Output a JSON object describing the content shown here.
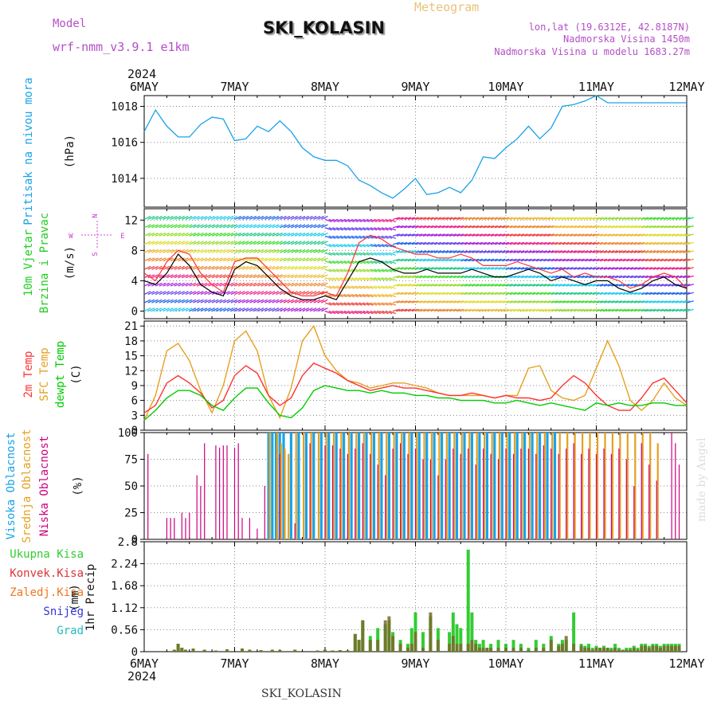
{
  "header": {
    "model_label": "Model",
    "model_name": "wrf-nmm_v3.9.1 e1km",
    "meteogram_label": "Meteogram",
    "station": "SKI_KOLASIN",
    "lonlat": "lon,lat (19.6312E, 42.8187N)",
    "altitude": "Nadmorska Visina 1450m",
    "model_altitude": "Nadmorska Visina u modelu 1683.27m",
    "footer_station": "SKI_KOLASIN",
    "credit": "made by Angel"
  },
  "colors": {
    "pressure": "#1aa3e8",
    "wind_label": "#22cc22",
    "temp2m": "#ff3333",
    "sfc_temp": "#e6a020",
    "dewpoint": "#00cc00",
    "high_cloud": "#1aa3e8",
    "mid_cloud": "#e6a020",
    "low_cloud": "#cc0080",
    "total_precip": "#33cc33",
    "conv_precip": "#dd3333",
    "frozen_precip": "#ee7722",
    "snow": "#3333dd",
    "graupel": "#22bbbb",
    "compass": "#cc44cc"
  },
  "chart_data": [
    {
      "type": "line",
      "name": "pressure",
      "ylabel_lines": [
        "Pritisak na nivou mora"
      ],
      "unit": "(hPa)",
      "ylim": [
        1012.4,
        1018.6
      ],
      "yticks": [
        1014,
        1016,
        1018
      ],
      "x": [
        0,
        3,
        6,
        9,
        12,
        15,
        18,
        21,
        24,
        27,
        30,
        33,
        36,
        39,
        42,
        45,
        48,
        51,
        54,
        57,
        60,
        63,
        66,
        69,
        72,
        75,
        78,
        81,
        84,
        87,
        90,
        93,
        96,
        99,
        102,
        105,
        108,
        111,
        114,
        117,
        120,
        123,
        126,
        129,
        132,
        135,
        138,
        141,
        144
      ],
      "values": [
        1016.6,
        1017.8,
        1016.9,
        1016.3,
        1016.3,
        1017.0,
        1017.4,
        1017.3,
        1016.1,
        1016.2,
        1016.9,
        1016.6,
        1017.2,
        1016.6,
        1015.7,
        1015.2,
        1015.0,
        1015.0,
        1014.7,
        1013.9,
        1013.6,
        1013.2,
        1012.9,
        1013.4,
        1014.0,
        1013.1,
        1013.2,
        1013.5,
        1013.2,
        1013.9,
        1015.2,
        1015.1,
        1015.7,
        1016.2,
        1016.9,
        1016.2,
        1016.8,
        1018.0,
        1018.1,
        1018.3,
        1018.6,
        1018.2,
        1018.2,
        1018.2,
        1018.2,
        1018.2,
        1018.2,
        1018.2,
        1018.2
      ],
      "y_positions": "data"
    },
    {
      "type": "line",
      "name": "wind",
      "ylabel_lines": [
        "10m Vjetar",
        "Brzina i Pravac"
      ],
      "unit": "(m/s)",
      "ylim": [
        -1,
        13.5
      ],
      "yticks": [
        0,
        4,
        8,
        12
      ],
      "compass": {
        "n": "N",
        "s": "S",
        "w": "W",
        "e": "E"
      },
      "x": [
        0,
        3,
        6,
        9,
        12,
        15,
        18,
        21,
        24,
        27,
        30,
        33,
        36,
        39,
        42,
        45,
        48,
        51,
        54,
        57,
        60,
        63,
        66,
        69,
        72,
        75,
        78,
        81,
        84,
        87,
        90,
        93,
        96,
        99,
        102,
        105,
        108,
        111,
        114,
        117,
        120,
        123,
        126,
        129,
        132,
        135,
        138,
        141,
        144
      ],
      "speed": [
        4.0,
        3.5,
        5.0,
        7.5,
        6.0,
        3.5,
        2.5,
        2.0,
        5.5,
        6.5,
        6.0,
        4.5,
        3.0,
        2.0,
        1.5,
        1.5,
        2.0,
        1.5,
        4.0,
        6.5,
        7.0,
        6.5,
        5.5,
        5.0,
        5.0,
        5.5,
        5.0,
        5.0,
        5.0,
        5.5,
        5.0,
        4.5,
        4.5,
        5.0,
        5.5,
        5.0,
        4.0,
        4.5,
        4.0,
        3.5,
        4.0,
        4.0,
        3.0,
        2.5,
        3.0,
        4.0,
        4.5,
        3.5,
        3.0
      ],
      "gust": [
        5.0,
        4.0,
        6.5,
        8.0,
        7.5,
        5.0,
        3.5,
        2.5,
        6.5,
        7.0,
        7.0,
        5.5,
        4.0,
        2.5,
        2.0,
        2.0,
        2.5,
        2.0,
        5.0,
        9.0,
        10.0,
        9.5,
        8.5,
        8.0,
        7.5,
        7.5,
        7.0,
        7.0,
        7.5,
        7.0,
        6.0,
        6.0,
        6.0,
        6.5,
        6.0,
        5.5,
        5.0,
        5.5,
        4.5,
        5.0,
        4.5,
        4.5,
        4.0,
        3.0,
        3.5,
        4.5,
        5.0,
        4.5,
        3.0
      ],
      "band_colors": [
        "#22ccee",
        "#2266ee",
        "#6644ee",
        "#aa22dd",
        "#ee2288",
        "#ee4444",
        "#ee8833",
        "#eebb33",
        "#dddd33",
        "#99dd33",
        "#44dd33",
        "#22cc88"
      ]
    },
    {
      "type": "line",
      "name": "temperature",
      "ylabel_lines": [
        "2m Temp",
        "SFC Temp",
        "dewpt Temp"
      ],
      "unit": "(C)",
      "ylim": [
        0,
        22
      ],
      "yticks": [
        0,
        3,
        6,
        9,
        12,
        15,
        18,
        21
      ],
      "x": [
        0,
        3,
        6,
        9,
        12,
        15,
        18,
        21,
        24,
        27,
        30,
        33,
        36,
        39,
        42,
        45,
        48,
        51,
        54,
        57,
        60,
        63,
        66,
        69,
        72,
        75,
        78,
        81,
        84,
        87,
        90,
        93,
        96,
        99,
        102,
        105,
        108,
        111,
        114,
        117,
        120,
        123,
        126,
        129,
        132,
        135,
        138,
        141,
        144
      ],
      "series": [
        {
          "key": "t2m",
          "values": [
            3.5,
            5.0,
            9.5,
            11.0,
            9.5,
            7.5,
            4.5,
            6.0,
            11.0,
            13.0,
            11.5,
            7.0,
            5.0,
            6.5,
            11.0,
            13.5,
            12.5,
            11.5,
            10.0,
            9.0,
            8.0,
            8.5,
            9.0,
            8.5,
            8.5,
            8.0,
            7.5,
            7.0,
            7.0,
            7.5,
            7.0,
            6.5,
            7.0,
            6.5,
            6.5,
            6.0,
            6.5,
            9.0,
            11.0,
            9.5,
            7.0,
            5.0,
            4.0,
            4.0,
            6.5,
            9.5,
            10.5,
            8.0,
            5.5
          ]
        },
        {
          "key": "sfc",
          "values": [
            2.0,
            7.0,
            16.0,
            17.5,
            14.0,
            8.0,
            3.5,
            9.0,
            18.0,
            20.0,
            16.0,
            7.0,
            2.5,
            8.5,
            18.0,
            21.0,
            15.0,
            12.0,
            10.0,
            9.5,
            8.5,
            9.0,
            9.5,
            9.5,
            9.0,
            8.5,
            7.5,
            7.0,
            7.0,
            7.0,
            7.0,
            6.5,
            7.0,
            7.0,
            12.5,
            13.0,
            8.0,
            6.5,
            6.0,
            7.0,
            12.5,
            18.0,
            13.0,
            6.0,
            4.0,
            6.0,
            9.5,
            6.5,
            5.0
          ]
        },
        {
          "key": "dew",
          "values": [
            2.0,
            4.0,
            6.5,
            8.0,
            8.0,
            7.0,
            5.0,
            4.0,
            6.5,
            8.5,
            8.5,
            5.5,
            3.0,
            2.5,
            4.5,
            8.0,
            9.0,
            8.5,
            8.0,
            8.0,
            7.5,
            8.0,
            7.5,
            7.5,
            7.0,
            7.0,
            6.5,
            6.5,
            6.0,
            6.0,
            6.0,
            5.5,
            5.5,
            6.0,
            5.5,
            5.0,
            5.5,
            5.0,
            4.5,
            4.0,
            5.5,
            5.0,
            5.5,
            5.0,
            5.0,
            5.5,
            5.5,
            5.0,
            5.0
          ]
        }
      ]
    },
    {
      "type": "bar",
      "name": "clouds",
      "ylabel_lines": [
        "Visoka Oblacnost",
        "Srednja Oblacnost",
        "Niska Oblacnost"
      ],
      "unit": "(%)",
      "ylim": [
        0,
        100
      ],
      "yticks": [
        0,
        25,
        50,
        75,
        100
      ],
      "series": [
        {
          "key": "low",
          "x": [
            1,
            6,
            7,
            8,
            10,
            11,
            12,
            14,
            15,
            16,
            19,
            20,
            21,
            22,
            24,
            25,
            26,
            28,
            30,
            32,
            36,
            40,
            44,
            48,
            50,
            52,
            54,
            56,
            58,
            60,
            62,
            64,
            66,
            68,
            70,
            72,
            74,
            76,
            78,
            80,
            82,
            84,
            86,
            88,
            90,
            92,
            94,
            96,
            98,
            100,
            102,
            104,
            106,
            108,
            110,
            112,
            114,
            116,
            118,
            120,
            122,
            124,
            126,
            128,
            130,
            132,
            134,
            136,
            140,
            141,
            142
          ],
          "values": [
            80,
            20,
            20,
            20,
            25,
            20,
            25,
            60,
            50,
            90,
            88,
            86,
            88,
            88,
            86,
            90,
            20,
            20,
            10,
            50,
            80,
            15,
            90,
            88,
            88,
            85,
            80,
            85,
            90,
            80,
            70,
            60,
            85,
            90,
            80,
            85,
            75,
            75,
            60,
            75,
            85,
            80,
            85,
            70,
            85,
            80,
            75,
            85,
            80,
            85,
            85,
            80,
            88,
            85,
            80,
            85,
            90,
            80,
            85,
            80,
            85,
            80,
            85,
            75,
            50,
            90,
            70,
            55,
            100,
            90,
            70
          ]
        },
        {
          "key": "mid",
          "x": [
            33,
            35,
            36,
            37,
            38,
            40,
            42,
            44,
            46,
            48,
            50,
            52,
            54,
            56,
            58,
            60,
            62,
            64,
            66,
            68,
            70,
            72,
            74,
            76,
            78,
            80,
            82,
            84,
            86,
            88,
            90,
            92,
            94,
            96,
            98,
            100,
            102,
            104,
            106,
            108,
            110,
            112,
            114,
            116,
            118,
            120,
            122,
            124,
            126,
            128,
            130,
            132,
            134,
            136
          ],
          "values": [
            100,
            100,
            90,
            85,
            80,
            100,
            100,
            100,
            100,
            100,
            100,
            100,
            100,
            100,
            100,
            100,
            100,
            100,
            100,
            100,
            100,
            100,
            100,
            100,
            100,
            100,
            100,
            100,
            100,
            100,
            100,
            100,
            100,
            100,
            100,
            100,
            100,
            100,
            100,
            100,
            100,
            100,
            100,
            100,
            100,
            100,
            100,
            100,
            100,
            100,
            100,
            100,
            100,
            90
          ]
        },
        {
          "key": "high",
          "x": [
            33,
            34,
            35,
            36,
            37,
            39,
            41,
            43,
            45,
            47,
            49,
            51,
            53,
            55,
            57,
            59,
            61,
            63,
            65,
            67,
            69,
            71,
            73,
            75,
            77,
            79,
            81,
            83,
            85,
            87,
            89,
            91,
            93,
            95,
            97,
            99,
            101,
            103,
            105,
            107,
            109
          ],
          "values": [
            100,
            100,
            100,
            100,
            100,
            100,
            100,
            100,
            100,
            100,
            100,
            100,
            100,
            100,
            100,
            100,
            100,
            100,
            100,
            100,
            100,
            100,
            100,
            100,
            100,
            100,
            100,
            100,
            100,
            100,
            100,
            100,
            100,
            100,
            100,
            100,
            100,
            100,
            100,
            100,
            100
          ]
        }
      ]
    },
    {
      "type": "bar",
      "name": "precipitation",
      "ylabel_lines": [
        "1hr Precip"
      ],
      "unit": "(mm)",
      "ylim": [
        0,
        2.8
      ],
      "yticks": [
        0,
        0.56,
        1.12,
        1.68,
        2.24,
        2.8
      ],
      "legend": [
        "Ukupna Kisa",
        "Konvek.Kisa",
        "Zaledj.Kisa",
        "Snijeg",
        "Grad"
      ],
      "x": [
        8,
        9,
        10,
        11,
        13,
        16,
        19,
        22,
        26,
        28,
        31,
        34,
        36,
        40,
        46,
        48,
        50,
        52,
        54,
        56,
        57,
        58,
        60,
        62,
        64,
        65,
        66,
        68,
        70,
        71,
        72,
        74,
        76,
        78,
        81,
        82,
        83,
        84,
        86,
        87,
        88,
        89,
        90,
        91,
        92,
        94,
        96,
        98,
        100,
        102,
        104,
        106,
        108,
        110,
        111,
        112,
        114,
        116,
        117,
        118,
        119,
        120,
        121,
        122,
        123,
        124,
        125,
        126,
        127,
        128,
        129,
        130,
        131,
        132,
        133,
        134,
        135,
        136,
        137,
        138,
        139,
        140,
        141,
        142
      ],
      "total": [
        0.05,
        0.2,
        0.1,
        0.05,
        0.08,
        0.05,
        0.03,
        0.06,
        0.08,
        0.05,
        0.04,
        0.05,
        0.04,
        0.05,
        0.03,
        0.05,
        0.03,
        0.04,
        0.03,
        0.45,
        0.3,
        0.8,
        0.4,
        0.6,
        0.7,
        0.8,
        0.5,
        0.3,
        0.2,
        0.6,
        1.0,
        0.5,
        0.9,
        0.6,
        0.5,
        1.0,
        0.7,
        0.6,
        2.6,
        1.0,
        0.3,
        0.2,
        0.3,
        0.1,
        0.2,
        0.3,
        0.2,
        0.3,
        0.2,
        0.1,
        0.3,
        0.2,
        0.4,
        0.2,
        0.3,
        0.3,
        1.0,
        0.2,
        0.15,
        0.2,
        0.1,
        0.15,
        0.1,
        0.15,
        0.1,
        0.1,
        0.2,
        0.1,
        0.05,
        0.1,
        0.1,
        0.15,
        0.1,
        0.2,
        0.2,
        0.15,
        0.2,
        0.2,
        0.15,
        0.2,
        0.2,
        0.2,
        0.2,
        0.2
      ],
      "conv": [
        0.05,
        0.2,
        0.1,
        0.05,
        0.08,
        0.05,
        0.03,
        0.06,
        0.08,
        0.05,
        0.04,
        0.05,
        0.04,
        0.05,
        0.03,
        0.05,
        0.03,
        0.04,
        0.03,
        0.45,
        0.3,
        0.8,
        0.3,
        0.3,
        0.8,
        0.9,
        0.4,
        0.2,
        0.1,
        0.2,
        0.5,
        0.1,
        1.0,
        0.3,
        0.2,
        0.4,
        0.2,
        0.2,
        0.2,
        0.3,
        0.2,
        0.1,
        0.1,
        0.1,
        0.1,
        0.1,
        0.1,
        0.1,
        0.1,
        0.05,
        0.1,
        0.1,
        0.3,
        0.15,
        0.2,
        0.4,
        0.2,
        0.15,
        0.1,
        0.1,
        0.05,
        0.1,
        0.1,
        0.1,
        0.1,
        0.05,
        0.1,
        0.05,
        0.05,
        0.05,
        0.05,
        0.1,
        0.05,
        0.15,
        0.15,
        0.1,
        0.15,
        0.15,
        0.1,
        0.15,
        0.15,
        0.15,
        0.15,
        0.15
      ]
    }
  ],
  "xaxis": {
    "year": "2024",
    "day_labels": [
      "6MAY",
      "7MAY",
      "8MAY",
      "9MAY",
      "10MAY",
      "11MAY",
      "12MAY"
    ],
    "hours_total": 144
  }
}
